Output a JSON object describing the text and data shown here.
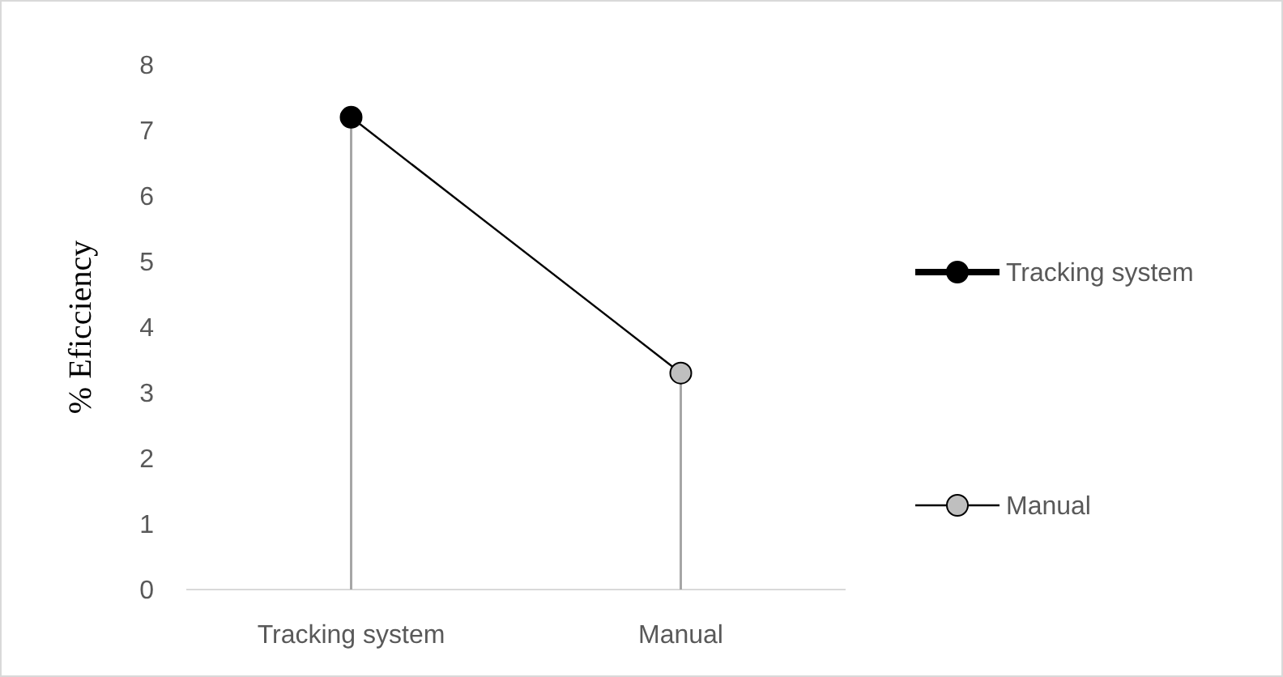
{
  "chart_data": {
    "type": "line",
    "ylabel": "% Eficciency",
    "categories": [
      "Tracking system",
      "Manual"
    ],
    "series": [
      {
        "name": "Tracking system",
        "type": "lollipop",
        "color": "#000000",
        "marker": "circle",
        "values": [
          7.2,
          null
        ]
      },
      {
        "name": "Manual",
        "type": "lollipop",
        "color": "#bfbfbf",
        "marker": "circle",
        "values": [
          null,
          3.3
        ]
      },
      {
        "color": "#000000",
        "values": [
          7.2,
          3.3
        ]
      }
    ],
    "ylim": [
      0,
      8
    ],
    "yticks": [
      0,
      1,
      2,
      3,
      4,
      5,
      6,
      7,
      8
    ],
    "legend": "right",
    "line_style": "solid"
  }
}
